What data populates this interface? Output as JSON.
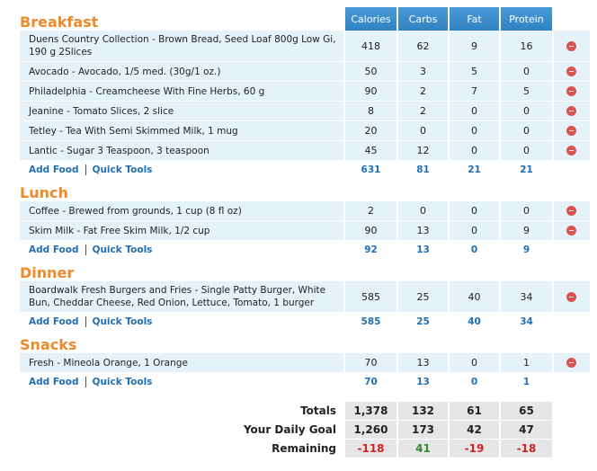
{
  "header": {
    "columns": [
      "Calories",
      "Carbs",
      "Fat",
      "Protein"
    ]
  },
  "links": {
    "add_food": "Add Food",
    "quick_tools": "Quick Tools"
  },
  "meals": [
    {
      "name": "Breakfast",
      "entries": [
        {
          "food": "Duens Country Collection - Brown Bread, Seed Loaf 800g Low Gi, 190 g 2Slices",
          "values": [
            418,
            62,
            9,
            16
          ]
        },
        {
          "food": "Avocado - Avocado, 1/5 med. (30g/1 oz.)",
          "values": [
            50,
            3,
            5,
            0
          ]
        },
        {
          "food": "Philadelphia - Creamcheese With Fine Herbs, 60 g",
          "values": [
            90,
            2,
            7,
            5
          ]
        },
        {
          "food": "Jeanine - Tomato Slices, 2 slice",
          "values": [
            8,
            2,
            0,
            0
          ]
        },
        {
          "food": "Tetley - Tea With Semi Skimmed Milk, 1 mug",
          "values": [
            20,
            0,
            0,
            0
          ]
        },
        {
          "food": "Lantic - Sugar 3 Teaspoon, 3 teaspoon",
          "values": [
            45,
            12,
            0,
            0
          ]
        }
      ],
      "totals": [
        631,
        81,
        21,
        21
      ]
    },
    {
      "name": "Lunch",
      "entries": [
        {
          "food": "Coffee - Brewed from grounds, 1 cup (8 fl oz)",
          "values": [
            2,
            0,
            0,
            0
          ]
        },
        {
          "food": "Skim Milk - Fat Free Skim Milk, 1/2 cup",
          "values": [
            90,
            13,
            0,
            9
          ]
        }
      ],
      "totals": [
        92,
        13,
        0,
        9
      ]
    },
    {
      "name": "Dinner",
      "entries": [
        {
          "food": "Boardwalk Fresh Burgers and Fries - Single Patty Burger, White Bun, Cheddar Cheese, Red Onion, Lettuce, Tomato, 1 burger",
          "values": [
            585,
            25,
            40,
            34
          ]
        }
      ],
      "totals": [
        585,
        25,
        40,
        34
      ]
    },
    {
      "name": "Snacks",
      "entries": [
        {
          "food": "Fresh - Mineola Orange, 1 Orange",
          "values": [
            70,
            13,
            0,
            1
          ]
        }
      ],
      "totals": [
        70,
        13,
        0,
        1
      ]
    }
  ],
  "summary": [
    {
      "label": "Totals",
      "values": [
        "1,378",
        132,
        61,
        65
      ]
    },
    {
      "label": "Your Daily Goal",
      "values": [
        "1,260",
        173,
        42,
        47
      ]
    },
    {
      "label": "Remaining",
      "values": [
        -118,
        41,
        -19,
        -18
      ]
    }
  ]
}
